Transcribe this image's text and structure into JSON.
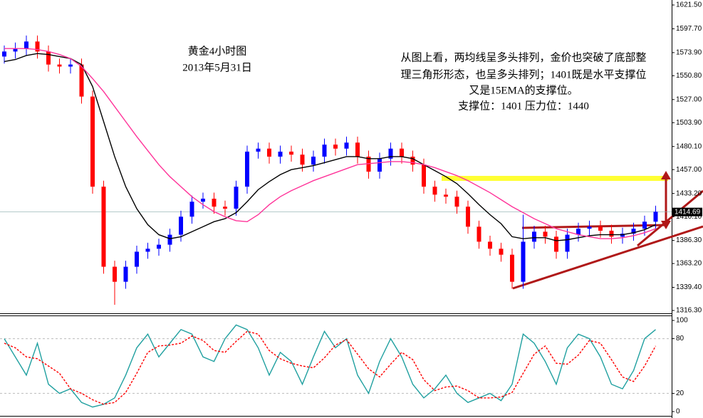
{
  "chart_data": [
    {
      "type": "candlestick",
      "title": "黄金4小时图",
      "subtitle": "2013年5月31日",
      "annotations": [
        "从图上看，两均线呈多头排列，金价也突破了底部整",
        "理三角形形态，也呈多头排列；1401既是水平支撑位",
        "又是15EMA的支撑位。",
        "支撑位：1401 压力位：1440"
      ],
      "up_color": "#0000ff",
      "down_color": "#ff0000",
      "open": [
        1570,
        1575,
        1578,
        1585,
        1575,
        1562,
        1560,
        1562,
        1530,
        1440,
        1360,
        1345,
        1360,
        1375,
        1378,
        1382,
        1392,
        1410,
        1425,
        1428,
        1420,
        1418,
        1440,
        1475,
        1478,
        1470,
        1475,
        1472,
        1462,
        1470,
        1482,
        1478,
        1484,
        1470,
        1455,
        1468,
        1478,
        1470,
        1462,
        1440,
        1432,
        1430,
        1420,
        1400,
        1385,
        1378,
        1372,
        1345,
        1385,
        1395,
        1390,
        1375,
        1392,
        1398,
        1400,
        1396,
        1390,
        1393,
        1398,
        1405
      ],
      "high": [
        1581,
        1584,
        1591,
        1591,
        1581,
        1568,
        1568,
        1568,
        1536,
        1446,
        1366,
        1366,
        1381,
        1384,
        1388,
        1398,
        1416,
        1431,
        1434,
        1434,
        1426,
        1446,
        1481,
        1484,
        1484,
        1481,
        1481,
        1478,
        1476,
        1488,
        1488,
        1490,
        1490,
        1476,
        1474,
        1484,
        1484,
        1476,
        1468,
        1446,
        1438,
        1436,
        1426,
        1406,
        1391,
        1384,
        1378,
        1412,
        1401,
        1401,
        1396,
        1398,
        1404,
        1406,
        1406,
        1402,
        1399,
        1404,
        1411,
        1421
      ],
      "low": [
        1563,
        1568,
        1571,
        1568,
        1555,
        1553,
        1553,
        1523,
        1433,
        1353,
        1322,
        1338,
        1353,
        1368,
        1371,
        1375,
        1385,
        1403,
        1418,
        1413,
        1411,
        1411,
        1433,
        1468,
        1463,
        1463,
        1465,
        1455,
        1455,
        1463,
        1471,
        1471,
        1463,
        1448,
        1448,
        1461,
        1463,
        1455,
        1433,
        1425,
        1423,
        1413,
        1393,
        1378,
        1371,
        1365,
        1338,
        1338,
        1378,
        1383,
        1368,
        1368,
        1385,
        1391,
        1389,
        1383,
        1383,
        1386,
        1391,
        1398
      ],
      "close": [
        1575,
        1578,
        1585,
        1575,
        1562,
        1560,
        1562,
        1530,
        1440,
        1360,
        1345,
        1360,
        1375,
        1378,
        1382,
        1392,
        1410,
        1425,
        1428,
        1420,
        1418,
        1440,
        1475,
        1478,
        1470,
        1475,
        1472,
        1462,
        1470,
        1482,
        1478,
        1484,
        1470,
        1455,
        1468,
        1478,
        1470,
        1462,
        1440,
        1432,
        1430,
        1420,
        1400,
        1385,
        1378,
        1372,
        1345,
        1385,
        1395,
        1390,
        1375,
        1392,
        1398,
        1400,
        1396,
        1390,
        1393,
        1398,
        1405,
        1415
      ],
      "series": [
        {
          "color": "#000000",
          "values": [
            1565,
            1567,
            1571,
            1573,
            1572,
            1570,
            1568,
            1562,
            1540,
            1505,
            1470,
            1440,
            1418,
            1402,
            1392,
            1388,
            1390,
            1395,
            1400,
            1405,
            1408,
            1414,
            1425,
            1437,
            1445,
            1452,
            1457,
            1459,
            1461,
            1464,
            1467,
            1470,
            1470,
            1468,
            1468,
            1470,
            1470,
            1468,
            1462,
            1456,
            1450,
            1443,
            1433,
            1422,
            1412,
            1403,
            1390,
            1388,
            1389,
            1389,
            1386,
            1387,
            1389,
            1391,
            1392,
            1392,
            1392,
            1394,
            1397,
            1402
          ]
        },
        {
          "color": "#ff3399",
          "values": [
            1578,
            1578,
            1578,
            1577,
            1575,
            1572,
            1568,
            1560,
            1548,
            1535,
            1520,
            1505,
            1490,
            1476,
            1462,
            1450,
            1440,
            1430,
            1422,
            1415,
            1410,
            1406,
            1405,
            1412,
            1422,
            1430,
            1436,
            1441,
            1446,
            1450,
            1454,
            1458,
            1462,
            1463,
            1464,
            1465,
            1465,
            1464,
            1462,
            1459,
            1455,
            1451,
            1446,
            1440,
            1434,
            1427,
            1420,
            1414,
            1408,
            1403,
            1398,
            1395,
            1392,
            1390,
            1388,
            1388,
            1389,
            1391,
            1394,
            1398
          ]
        }
      ],
      "last_price": 1414.69,
      "ylim": [
        1316.3,
        1621.5
      ],
      "yticks": [
        {
          "value": 1621.5,
          "label": "1621.50"
        },
        {
          "value": 1597.7,
          "label": "1597.70"
        },
        {
          "value": 1573.9,
          "label": "1573.90"
        },
        {
          "value": 1550.8,
          "label": "1550.80"
        },
        {
          "value": 1527,
          "label": "1527.00"
        },
        {
          "value": 1503.9,
          "label": "1503.90"
        },
        {
          "value": 1480.1,
          "label": "1480.10"
        },
        {
          "value": 1457,
          "label": "1457.00"
        },
        {
          "value": 1433.2,
          "label": "1433.20"
        },
        {
          "value": 1410.1,
          "label": "1410.10"
        },
        {
          "value": 1386.3,
          "label": "1386.30"
        },
        {
          "value": 1363.2,
          "label": "1363.20"
        },
        {
          "value": 1339.4,
          "label": "1339.40"
        },
        {
          "value": 1316.3,
          "label": "1316.30"
        }
      ]
    },
    {
      "type": "line",
      "series": [
        {
          "color": "#20a0a0",
          "values": [
            80,
            60,
            40,
            75,
            30,
            20,
            25,
            10,
            5,
            8,
            15,
            40,
            70,
            85,
            60,
            75,
            90,
            85,
            60,
            55,
            80,
            95,
            90,
            70,
            40,
            65,
            55,
            30,
            60,
            88,
            70,
            80,
            40,
            20,
            55,
            80,
            60,
            30,
            15,
            25,
            40,
            20,
            10,
            15,
            20,
            12,
            30,
            85,
            75,
            55,
            30,
            70,
            85,
            80,
            60,
            30,
            25,
            45,
            80,
            90
          ]
        },
        {
          "color": "#ff0000",
          "dashed": true,
          "values": [
            75,
            70,
            60,
            58,
            50,
            42,
            25,
            20,
            13,
            8,
            10,
            21,
            42,
            65,
            72,
            73,
            75,
            83,
            78,
            67,
            65,
            77,
            88,
            85,
            67,
            58,
            53,
            50,
            48,
            59,
            73,
            79,
            63,
            47,
            38,
            52,
            65,
            57,
            35,
            23,
            27,
            28,
            23,
            15,
            15,
            16,
            21,
            42,
            63,
            72,
            53,
            52,
            62,
            78,
            75,
            57,
            38,
            33,
            50,
            72
          ]
        }
      ],
      "ylim": [
        0,
        100
      ],
      "yticks": [
        0,
        20,
        80,
        100
      ]
    }
  ]
}
